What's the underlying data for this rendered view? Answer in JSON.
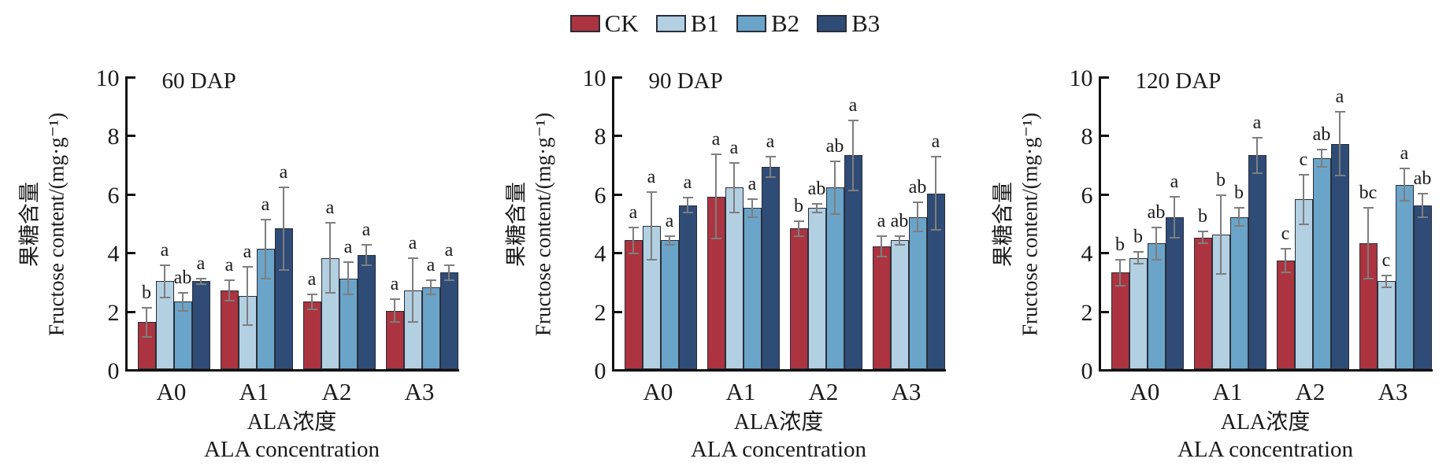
{
  "figure": {
    "kind": "grouped-bar-figure",
    "background": "#ffffff"
  },
  "chart_data": {
    "type": "bar",
    "categories": [
      "A0",
      "A1",
      "A2",
      "A3"
    ],
    "legend": {
      "labels": [
        "CK",
        "B1",
        "B2",
        "B3"
      ],
      "position": "top-center"
    },
    "series_colors": {
      "CK": "#AC3440",
      "B1": "#B3D0E3",
      "B2": "#6BA4C9",
      "B3": "#2F4C77"
    },
    "bar_outline_color": "#2A2E39",
    "error_bar_color": "#7E7E7E",
    "axis_color": "#111111",
    "y_axis": {
      "label_zh": "果糖含量",
      "label_en": "Fructose content/(mg·g⁻¹)",
      "min": 0,
      "max": 10,
      "ticks": [
        0,
        2,
        4,
        6,
        8,
        10
      ]
    },
    "x_axis": {
      "label_zh": "ALA浓度",
      "label_en": "ALA concentration"
    },
    "grid": false,
    "panels": [
      {
        "title": "60 DAP",
        "series": [
          {
            "name": "CK",
            "values": [
              1.6,
              2.7,
              2.3,
              2.0
            ],
            "errors": [
              0.5,
              0.35,
              0.25,
              0.4
            ],
            "letters": [
              "b",
              "a",
              "a",
              "a"
            ]
          },
          {
            "name": "B1",
            "values": [
              3.0,
              2.5,
              3.8,
              2.7
            ],
            "errors": [
              0.55,
              1.0,
              1.2,
              1.1
            ],
            "letters": [
              "a",
              "a",
              "a",
              "a"
            ]
          },
          {
            "name": "B2",
            "values": [
              2.3,
              4.1,
              3.1,
              2.8
            ],
            "errors": [
              0.3,
              1.0,
              0.55,
              0.25
            ],
            "letters": [
              "ab",
              "a",
              "a",
              "a"
            ]
          },
          {
            "name": "B3",
            "values": [
              3.0,
              4.8,
              3.9,
              3.3
            ],
            "errors": [
              0.1,
              1.4,
              0.35,
              0.25
            ],
            "letters": [
              "a",
              "a",
              "a",
              "a"
            ]
          }
        ]
      },
      {
        "title": "90 DAP",
        "series": [
          {
            "name": "CK",
            "values": [
              4.4,
              5.9,
              4.8,
              4.2
            ],
            "errors": [
              0.45,
              1.45,
              0.25,
              0.35
            ],
            "letters": [
              "a",
              "a",
              "b",
              "a"
            ]
          },
          {
            "name": "B1",
            "values": [
              4.9,
              6.2,
              5.5,
              4.4
            ],
            "errors": [
              1.15,
              0.85,
              0.15,
              0.15
            ],
            "letters": [
              "a",
              "a",
              "ab",
              "ab"
            ]
          },
          {
            "name": "B2",
            "values": [
              4.4,
              5.5,
              6.2,
              5.2
            ],
            "errors": [
              0.15,
              0.3,
              0.9,
              0.5
            ],
            "letters": [
              "a",
              "a",
              "ab",
              "ab"
            ]
          },
          {
            "name": "B3",
            "values": [
              5.6,
              6.9,
              7.3,
              6.0
            ],
            "errors": [
              0.25,
              0.35,
              1.2,
              1.25
            ],
            "letters": [
              "a",
              "a",
              "a",
              "a"
            ]
          }
        ]
      },
      {
        "title": "120 DAP",
        "series": [
          {
            "name": "CK",
            "values": [
              3.3,
              4.5,
              3.7,
              4.3
            ],
            "errors": [
              0.45,
              0.2,
              0.4,
              1.2
            ],
            "letters": [
              "b",
              "b",
              "c",
              "bc"
            ]
          },
          {
            "name": "B1",
            "values": [
              3.8,
              4.6,
              5.8,
              3.0
            ],
            "errors": [
              0.2,
              1.35,
              0.85,
              0.2
            ],
            "letters": [
              "b",
              "b",
              "c",
              "c"
            ]
          },
          {
            "name": "B2",
            "values": [
              4.3,
              5.2,
              7.2,
              6.3
            ],
            "errors": [
              0.55,
              0.3,
              0.3,
              0.55
            ],
            "letters": [
              "ab",
              "b",
              "ab",
              "a"
            ]
          },
          {
            "name": "B3",
            "values": [
              5.2,
              7.3,
              7.7,
              5.6
            ],
            "errors": [
              0.7,
              0.6,
              1.1,
              0.4
            ],
            "letters": [
              "a",
              "a",
              "a",
              "ab"
            ]
          }
        ]
      }
    ]
  }
}
